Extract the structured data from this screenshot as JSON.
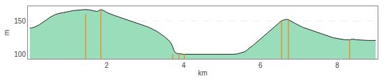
{
  "chart_data": {
    "type": "area",
    "xlabel": "km",
    "ylabel": "m",
    "color": "#99ddbb",
    "xlim": [
      -0.05,
      9.05
    ],
    "ylim": [
      93,
      173
    ],
    "xticks": [
      2,
      4,
      6,
      8
    ],
    "yticks": [
      100,
      150
    ],
    "grid": true,
    "x": [
      0.0,
      0.05,
      0.15,
      0.25,
      0.35,
      0.45,
      0.55,
      0.65,
      0.75,
      0.85,
      0.95,
      1.05,
      1.15,
      1.25,
      1.35,
      1.45,
      1.55,
      1.65,
      1.75,
      1.85,
      1.9,
      1.95,
      2.0,
      2.1,
      2.2,
      2.3,
      2.4,
      2.5,
      2.6,
      2.7,
      2.8,
      2.9,
      3.0,
      3.1,
      3.2,
      3.3,
      3.4,
      3.5,
      3.6,
      3.65,
      3.7,
      3.72,
      3.75,
      3.78,
      3.82,
      3.86,
      3.9,
      3.95,
      4.0,
      4.05,
      4.1,
      4.15,
      4.2,
      4.3,
      4.4,
      4.5,
      4.6,
      4.7,
      4.8,
      4.9,
      5.0,
      5.1,
      5.2,
      5.25,
      5.3,
      5.4,
      5.5,
      5.6,
      5.65,
      5.7,
      5.8,
      5.9,
      6.0,
      6.1,
      6.2,
      6.3,
      6.4,
      6.5,
      6.55,
      6.63,
      6.68,
      6.73,
      6.8,
      6.9,
      7.0,
      7.1,
      7.2,
      7.3,
      7.4,
      7.5,
      7.6,
      7.7,
      7.8,
      7.9,
      8.0,
      8.1,
      8.2,
      8.32,
      8.4,
      8.5,
      8.6,
      8.7,
      8.8,
      8.9,
      9.0
    ],
    "values": [
      140,
      140,
      142,
      145,
      149,
      153,
      157,
      160,
      162,
      163,
      164.5,
      165.5,
      166.5,
      167,
      167.5,
      168,
      167.5,
      166.5,
      165,
      168,
      167,
      165.5,
      163.5,
      161,
      159,
      157,
      155,
      153,
      151,
      149,
      147,
      145,
      143,
      141,
      138,
      135,
      131,
      127,
      122,
      119,
      114,
      110,
      106,
      103,
      101.5,
      101,
      100.5,
      100.2,
      100,
      100,
      100,
      99.8,
      99.7,
      99.6,
      99.6,
      99.6,
      99.6,
      99.6,
      99.6,
      99.6,
      99.6,
      99.6,
      99.7,
      99.8,
      100,
      100.5,
      102,
      104,
      106,
      109,
      113,
      118,
      123,
      128,
      133,
      138,
      143,
      148,
      151,
      152.5,
      153,
      152.5,
      150,
      147,
      144,
      141,
      139,
      137,
      135,
      133,
      131,
      129,
      127,
      125,
      124,
      123,
      122,
      122,
      123,
      122,
      121.5,
      121,
      121,
      121,
      121
    ],
    "vertical_lines": [
      {
        "x": 1.45,
        "y0": 93,
        "y1": 161
      },
      {
        "x": 1.85,
        "y0": 93,
        "y1": 168
      },
      {
        "x": 3.72,
        "y0": 93,
        "y1": 101
      },
      {
        "x": 3.88,
        "y0": 93,
        "y1": 101
      },
      {
        "x": 4.02,
        "y0": 93,
        "y1": 100
      },
      {
        "x": 6.55,
        "y0": 93,
        "y1": 152
      },
      {
        "x": 6.73,
        "y0": 93,
        "y1": 152
      },
      {
        "x": 8.32,
        "y0": 93,
        "y1": 122
      }
    ]
  }
}
